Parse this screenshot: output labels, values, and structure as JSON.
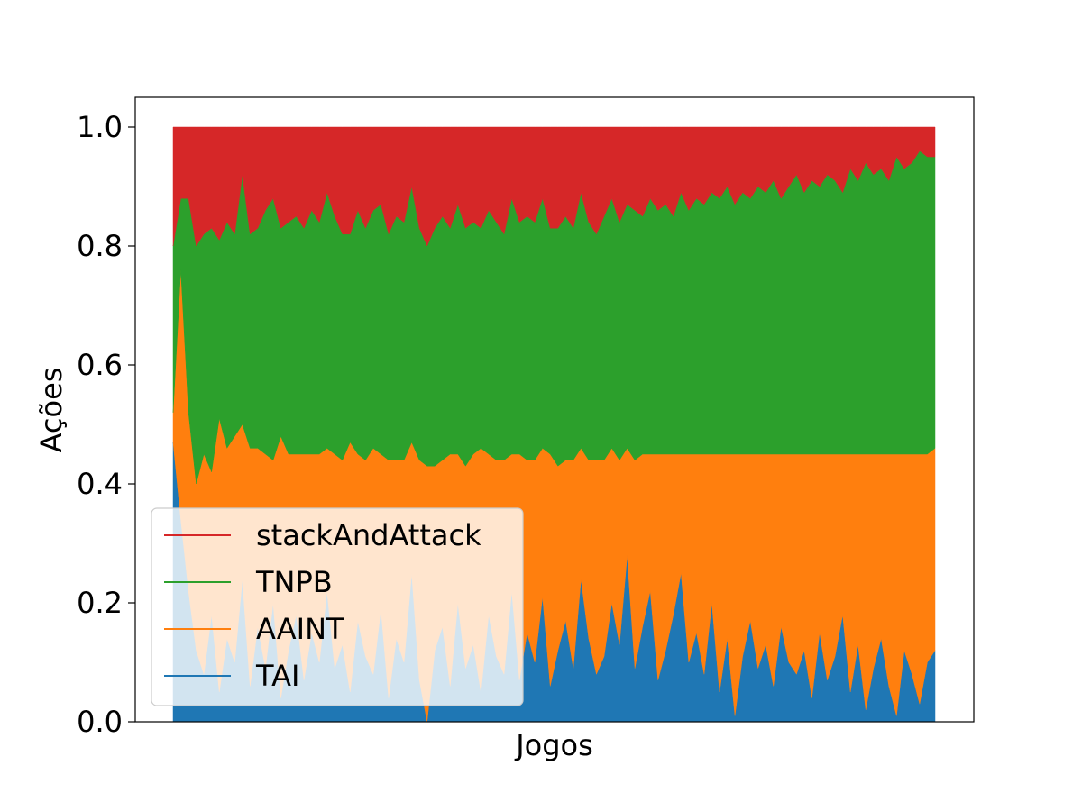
{
  "chart_data": {
    "type": "area",
    "stacked": true,
    "normalized": true,
    "title": "",
    "xlabel": "Jogos",
    "ylabel": "Ações",
    "ylim": [
      0,
      1.05
    ],
    "yticks": [
      {
        "value": 0.0,
        "label": "0.0"
      },
      {
        "value": 0.2,
        "label": "0.2"
      },
      {
        "value": 0.4,
        "label": "0.4"
      },
      {
        "value": 0.6,
        "label": "0.6"
      },
      {
        "value": 0.8,
        "label": "0.8"
      },
      {
        "value": 1.0,
        "label": "1.0"
      }
    ],
    "xticks": [],
    "grid": false,
    "legend_position": "lower-left",
    "x": [
      1,
      2,
      3,
      4,
      5,
      6,
      7,
      8,
      9,
      10,
      11,
      12,
      13,
      14,
      15,
      16,
      17,
      18,
      19,
      20,
      21,
      22,
      23,
      24,
      25,
      26,
      27,
      28,
      29,
      30,
      31,
      32,
      33,
      34,
      35,
      36,
      37,
      38,
      39,
      40,
      41,
      42,
      43,
      44,
      45,
      46,
      47,
      48,
      49,
      50,
      51,
      52,
      53,
      54,
      55,
      56,
      57,
      58,
      59,
      60,
      61,
      62,
      63,
      64,
      65,
      66,
      67,
      68,
      69,
      70,
      71,
      72,
      73,
      74,
      75,
      76,
      77,
      78,
      79,
      80,
      81,
      82,
      83,
      84,
      85,
      86,
      87,
      88,
      89,
      90,
      91,
      92,
      93,
      94,
      95,
      96,
      97,
      98,
      99,
      100
    ],
    "series": [
      {
        "name": "TAI",
        "color": "#1f77b4",
        "values": [
          0.47,
          0.34,
          0.22,
          0.12,
          0.08,
          0.18,
          0.05,
          0.14,
          0.1,
          0.24,
          0.06,
          0.16,
          0.09,
          0.2,
          0.04,
          0.12,
          0.18,
          0.07,
          0.15,
          0.1,
          0.22,
          0.09,
          0.13,
          0.05,
          0.17,
          0.11,
          0.08,
          0.19,
          0.04,
          0.14,
          0.1,
          0.25,
          0.07,
          0.0,
          0.12,
          0.16,
          0.06,
          0.2,
          0.09,
          0.13,
          0.05,
          0.18,
          0.11,
          0.08,
          0.22,
          0.07,
          0.15,
          0.1,
          0.21,
          0.06,
          0.12,
          0.17,
          0.09,
          0.24,
          0.14,
          0.08,
          0.11,
          0.2,
          0.13,
          0.28,
          0.09,
          0.16,
          0.22,
          0.07,
          0.12,
          0.18,
          0.25,
          0.1,
          0.15,
          0.08,
          0.2,
          0.05,
          0.14,
          0.01,
          0.11,
          0.17,
          0.09,
          0.13,
          0.06,
          0.16,
          0.1,
          0.08,
          0.12,
          0.04,
          0.15,
          0.07,
          0.11,
          0.18,
          0.05,
          0.13,
          0.02,
          0.09,
          0.14,
          0.06,
          0.01,
          0.12,
          0.08,
          0.03,
          0.1,
          0.12
        ]
      },
      {
        "name": "AAINT",
        "color": "#ff7f0e",
        "values": [
          0.05,
          0.42,
          0.3,
          0.28,
          0.37,
          0.24,
          0.46,
          0.32,
          0.38,
          0.26,
          0.4,
          0.3,
          0.36,
          0.24,
          0.44,
          0.33,
          0.27,
          0.38,
          0.3,
          0.35,
          0.24,
          0.36,
          0.31,
          0.42,
          0.28,
          0.33,
          0.38,
          0.26,
          0.4,
          0.3,
          0.34,
          0.22,
          0.37,
          0.43,
          0.31,
          0.28,
          0.39,
          0.25,
          0.34,
          0.32,
          0.41,
          0.27,
          0.33,
          0.36,
          0.23,
          0.38,
          0.29,
          0.34,
          0.25,
          0.39,
          0.31,
          0.27,
          0.35,
          0.22,
          0.3,
          0.36,
          0.33,
          0.26,
          0.31,
          0.18,
          0.35,
          0.29,
          0.23,
          0.38,
          0.33,
          0.27,
          0.2,
          0.35,
          0.3,
          0.37,
          0.25,
          0.4,
          0.31,
          0.44,
          0.34,
          0.28,
          0.36,
          0.32,
          0.39,
          0.29,
          0.35,
          0.37,
          0.33,
          0.41,
          0.3,
          0.38,
          0.34,
          0.27,
          0.4,
          0.32,
          0.43,
          0.36,
          0.31,
          0.39,
          0.44,
          0.33,
          0.37,
          0.42,
          0.35,
          0.34
        ]
      },
      {
        "name": "TNPB",
        "color": "#2ca02c",
        "values": [
          0.28,
          0.12,
          0.36,
          0.4,
          0.37,
          0.41,
          0.3,
          0.38,
          0.34,
          0.42,
          0.36,
          0.37,
          0.41,
          0.44,
          0.35,
          0.39,
          0.4,
          0.38,
          0.41,
          0.39,
          0.43,
          0.4,
          0.38,
          0.35,
          0.41,
          0.39,
          0.4,
          0.42,
          0.38,
          0.41,
          0.4,
          0.43,
          0.39,
          0.37,
          0.4,
          0.41,
          0.38,
          0.42,
          0.4,
          0.39,
          0.37,
          0.41,
          0.4,
          0.38,
          0.43,
          0.39,
          0.41,
          0.4,
          0.42,
          0.38,
          0.4,
          0.41,
          0.39,
          0.43,
          0.4,
          0.38,
          0.41,
          0.42,
          0.4,
          0.41,
          0.42,
          0.4,
          0.43,
          0.41,
          0.42,
          0.4,
          0.44,
          0.41,
          0.43,
          0.42,
          0.44,
          0.43,
          0.45,
          0.42,
          0.44,
          0.43,
          0.45,
          0.44,
          0.46,
          0.43,
          0.45,
          0.47,
          0.44,
          0.46,
          0.45,
          0.47,
          0.46,
          0.44,
          0.48,
          0.46,
          0.49,
          0.47,
          0.48,
          0.46,
          0.5,
          0.48,
          0.49,
          0.51,
          0.5,
          0.49
        ]
      },
      {
        "name": "stackAndAttack",
        "color": "#d62728",
        "values": [
          0.2,
          0.12,
          0.12,
          0.2,
          0.18,
          0.17,
          0.19,
          0.16,
          0.18,
          0.08,
          0.18,
          0.17,
          0.14,
          0.12,
          0.17,
          0.16,
          0.15,
          0.17,
          0.14,
          0.16,
          0.11,
          0.15,
          0.18,
          0.18,
          0.14,
          0.17,
          0.14,
          0.13,
          0.18,
          0.15,
          0.16,
          0.1,
          0.17,
          0.2,
          0.17,
          0.15,
          0.17,
          0.13,
          0.17,
          0.16,
          0.17,
          0.14,
          0.16,
          0.18,
          0.12,
          0.16,
          0.15,
          0.16,
          0.12,
          0.17,
          0.17,
          0.15,
          0.17,
          0.11,
          0.16,
          0.18,
          0.15,
          0.12,
          0.16,
          0.13,
          0.14,
          0.15,
          0.12,
          0.14,
          0.13,
          0.15,
          0.11,
          0.14,
          0.12,
          0.13,
          0.11,
          0.12,
          0.1,
          0.13,
          0.11,
          0.12,
          0.1,
          0.11,
          0.09,
          0.12,
          0.1,
          0.08,
          0.11,
          0.09,
          0.1,
          0.08,
          0.09,
          0.11,
          0.07,
          0.09,
          0.06,
          0.08,
          0.07,
          0.09,
          0.05,
          0.07,
          0.06,
          0.04,
          0.05,
          0.05
        ]
      }
    ],
    "legend": [
      {
        "label": "stackAndAttack",
        "color": "#d62728"
      },
      {
        "label": "TNPB",
        "color": "#2ca02c"
      },
      {
        "label": "AAINT",
        "color": "#ff7f0e"
      },
      {
        "label": "TAI",
        "color": "#1f77b4"
      }
    ]
  }
}
